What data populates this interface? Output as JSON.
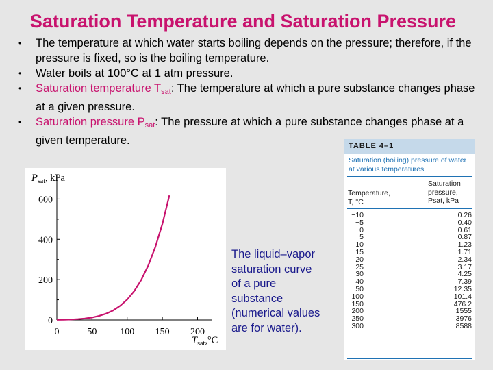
{
  "slide": {
    "title": "Saturation Temperature and Saturation Pressure",
    "bullet_symbol": "•",
    "bullets": {
      "b1": "The temperature at which water starts boiling depends on the pressure; therefore, if the pressure is fixed, so is the boiling temperature.",
      "b2": "Water boils at 100°C at 1 atm pressure.",
      "b3_term": "Saturation temperature T",
      "b3_sub": "sat",
      "b3_rest": ": The temperature at which a pure substance changes phase at a given pressure.",
      "b4_term": "Saturation pressure P",
      "b4_sub": "sat",
      "b4_rest": ": The pressure at which a pure substance changes phase at a given temperature."
    },
    "caption": "The liquid–vapor saturation curve of a pure substance (numerical values are for water)."
  },
  "chart_data": {
    "type": "line",
    "ylabel_symbol": "P",
    "ylabel_sub": "sat",
    "ylabel_unit": ", kPa",
    "xlabel_symbol": "T",
    "xlabel_sub": "sat",
    "xlabel_unit": ",°C",
    "xlim": [
      0,
      220
    ],
    "ylim": [
      0,
      700
    ],
    "xticks": [
      0,
      50,
      100,
      150,
      200
    ],
    "yticks": [
      0,
      200,
      400,
      600
    ],
    "series_color": "#c8136e",
    "x": [
      0,
      10,
      20,
      30,
      40,
      50,
      60,
      70,
      80,
      90,
      100,
      110,
      120,
      130,
      140,
      150,
      160
    ],
    "y": [
      0.61,
      1.23,
      2.34,
      4.25,
      7.39,
      12.35,
      19.9,
      31.2,
      47.4,
      70.2,
      101.4,
      143.4,
      198.7,
      270.3,
      361.5,
      476.2,
      618.2
    ]
  },
  "table": {
    "title": "TABLE 4–1",
    "caption": "Saturation (boiling) pressure of water at various temperatures",
    "col1_line1": "Temperature,",
    "col1_line2": "T, °C",
    "col2_line1": "Saturation",
    "col2_line2": "pressure,",
    "col2_line3": "Psat, kPa",
    "rows": [
      {
        "t": "−10",
        "p": "0.26"
      },
      {
        "t": "−5",
        "p": "0.40"
      },
      {
        "t": "0",
        "p": "0.61"
      },
      {
        "t": "5",
        "p": "0.87"
      },
      {
        "t": "10",
        "p": "1.23"
      },
      {
        "t": "15",
        "p": "1.71"
      },
      {
        "t": "20",
        "p": "2.34"
      },
      {
        "t": "25",
        "p": "3.17"
      },
      {
        "t": "30",
        "p": "4.25"
      },
      {
        "t": "40",
        "p": "7.39"
      },
      {
        "t": "50",
        "p": "12.35"
      },
      {
        "t": "100",
        "p": "101.4"
      },
      {
        "t": "150",
        "p": "476.2"
      },
      {
        "t": "200",
        "p": "1555"
      },
      {
        "t": "250",
        "p": "3976"
      },
      {
        "t": "300",
        "p": "8588"
      }
    ]
  }
}
